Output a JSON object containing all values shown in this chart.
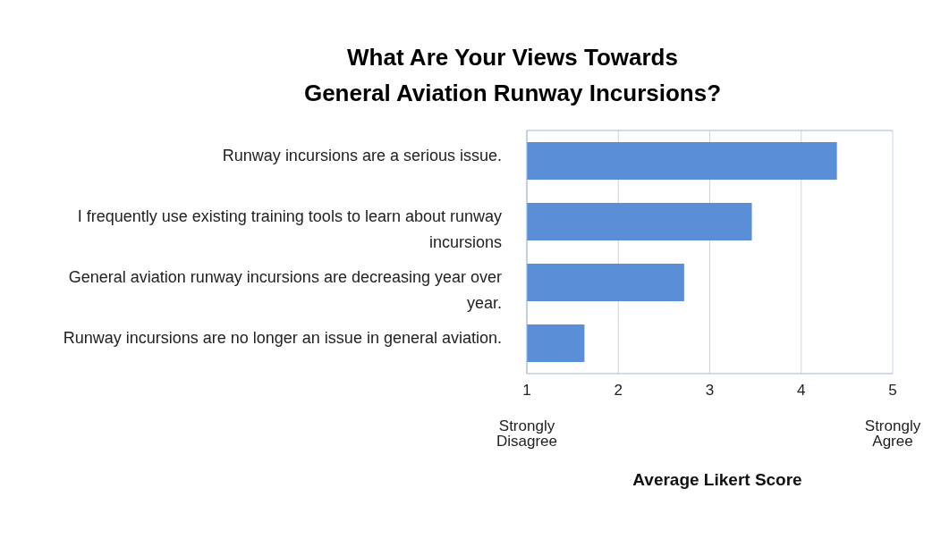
{
  "chart_data": {
    "type": "bar",
    "orientation": "horizontal",
    "title": "What Are Your Views Towards\nGeneral Aviation Runway Incursions?",
    "xlabel": "Average Likert Score",
    "categories": [
      "Runway incursions are a serious issue.",
      "I frequently use existing training tools to learn about runway incursions",
      "General aviation runway incursions are decreasing year over year.",
      "Runway incursions are no longer an issue in general aviation."
    ],
    "values": [
      4.39,
      3.46,
      2.72,
      1.63
    ],
    "color": "#5a8ed6",
    "xlim": [
      1,
      5
    ],
    "xticks": [
      1,
      2,
      3,
      4,
      5
    ],
    "grid": "x",
    "annotations": [
      "Strongly Disagree",
      "Strongly Agree"
    ]
  }
}
